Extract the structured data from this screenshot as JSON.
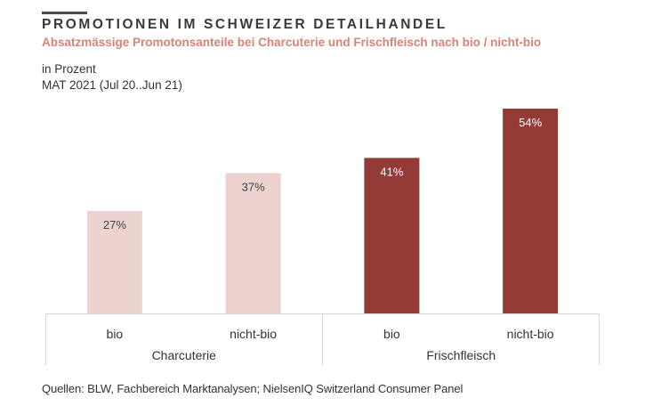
{
  "header": {
    "title": "PROMOTIONEN IM SCHWEIZER DETAILHANDEL",
    "subtitle": "Absatzmässige Promotonsanteile  bei Charcuterie  und Frischfleisch  nach bio / nicht-bio",
    "unit": "in Prozent",
    "period": "MAT 2021  (Jul 20..Jun  21)"
  },
  "colors": {
    "charcuterie": "#ecd3cf",
    "frischfleisch": "#943a37",
    "label_dark": "#444444",
    "label_light": "#ffffff",
    "title": "#3a3a3a",
    "subtitle": "#d9827a"
  },
  "chart_data": {
    "type": "bar",
    "title": "PROMOTIONEN IM SCHWEIZER DETAILHANDEL",
    "subtitle": "Absatzmässige Promotonsanteile  bei Charcuterie  und Frischfleisch  nach bio / nicht-bio",
    "xlabel": "",
    "ylabel": "in Prozent",
    "ylim": [
      0,
      54
    ],
    "grid": false,
    "legend": "none",
    "groups": [
      "Charcuterie",
      "Frischfleisch"
    ],
    "categories": [
      "bio",
      "nicht-bio",
      "bio",
      "nicht-bio"
    ],
    "values": [
      27,
      37,
      41,
      54
    ],
    "data_labels": [
      "27%",
      "37%",
      "41%",
      "54%"
    ],
    "group_of_category": [
      "Charcuterie",
      "Charcuterie",
      "Frischfleisch",
      "Frischfleisch"
    ]
  },
  "footer": {
    "source": "Quellen: BLW, Fachbereich Marktanalysen; NielsenIQ Switzerland Consumer Panel"
  }
}
